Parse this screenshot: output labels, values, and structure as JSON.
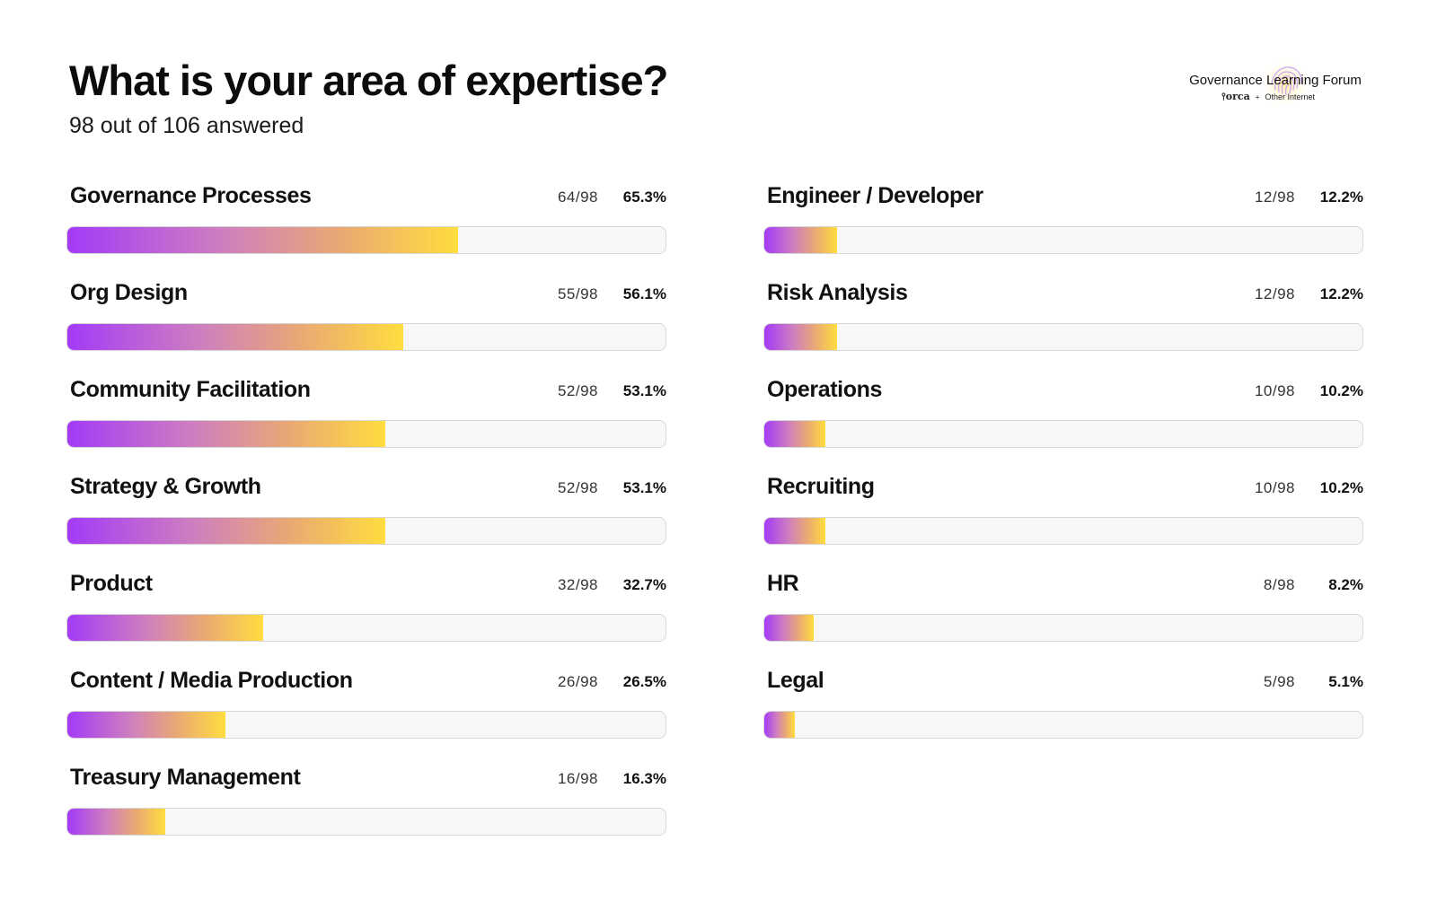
{
  "header": {
    "title": "What is your area of expertise?",
    "subtitle": "98 out of 106 answered"
  },
  "logo": {
    "name": "Governance Learning Forum",
    "partner_a": "orca",
    "separator": "+",
    "partner_b": "Other Internet"
  },
  "colors": {
    "gradient_start": "#a43af8",
    "gradient_end": "#ffdd3f",
    "track": "#f7f7f7"
  },
  "chart_data": {
    "type": "bar",
    "orientation": "horizontal",
    "title": "What is your area of expertise?",
    "subtitle": "98 out of 106 answered",
    "total": 98,
    "xlim": [
      0,
      100
    ],
    "series": [
      {
        "column": "left",
        "items": [
          {
            "label": "Governance Processes",
            "count": "64/98",
            "percent_label": "65.3%",
            "value": 65.3
          },
          {
            "label": "Org Design",
            "count": "55/98",
            "percent_label": "56.1%",
            "value": 56.1
          },
          {
            "label": "Community Facilitation",
            "count": "52/98",
            "percent_label": "53.1%",
            "value": 53.1
          },
          {
            "label": "Strategy & Growth",
            "count": "52/98",
            "percent_label": "53.1%",
            "value": 53.1
          },
          {
            "label": "Product",
            "count": "32/98",
            "percent_label": "32.7%",
            "value": 32.7
          },
          {
            "label": "Content / Media Production",
            "count": "26/98",
            "percent_label": "26.5%",
            "value": 26.5
          },
          {
            "label": "Treasury Management",
            "count": "16/98",
            "percent_label": "16.3%",
            "value": 16.3
          }
        ]
      },
      {
        "column": "right",
        "items": [
          {
            "label": "Engineer / Developer",
            "count": "12/98",
            "percent_label": "12.2%",
            "value": 12.2
          },
          {
            "label": "Risk Analysis",
            "count": "12/98",
            "percent_label": "12.2%",
            "value": 12.2
          },
          {
            "label": "Operations",
            "count": "10/98",
            "percent_label": "10.2%",
            "value": 10.2
          },
          {
            "label": "Recruiting",
            "count": "10/98",
            "percent_label": "10.2%",
            "value": 10.2
          },
          {
            "label": "HR",
            "count": "8/98",
            "percent_label": "8.2%",
            "value": 8.2
          },
          {
            "label": "Legal",
            "count": "5/98",
            "percent_label": "5.1%",
            "value": 5.1
          }
        ]
      }
    ]
  }
}
